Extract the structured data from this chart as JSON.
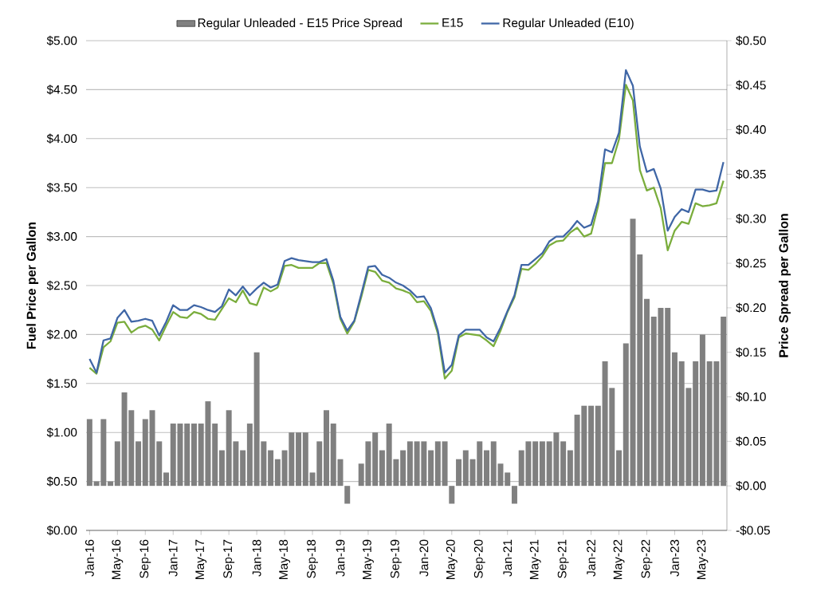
{
  "chart_data": {
    "type": "bar",
    "categories": [
      "Jan-16",
      null,
      null,
      null,
      "May-16",
      null,
      null,
      null,
      "Sep-16",
      null,
      null,
      null,
      "Jan-17",
      null,
      null,
      null,
      "May-17",
      null,
      null,
      null,
      "Sep-17",
      null,
      null,
      null,
      "Jan-18",
      null,
      null,
      null,
      "May-18",
      null,
      null,
      null,
      "Sep-18",
      null,
      null,
      null,
      "Jan-19",
      null,
      null,
      null,
      "May-19",
      null,
      null,
      null,
      "Sep-19",
      null,
      null,
      null,
      "Jan-20",
      null,
      null,
      null,
      "May-20",
      null,
      null,
      null,
      "Sep-20",
      null,
      null,
      null,
      "Jan-21",
      null,
      null,
      null,
      "May-21",
      null,
      null,
      null,
      "Sep-21",
      null,
      null,
      null,
      "Jan-22",
      null,
      null,
      null,
      "May-22",
      null,
      null,
      null,
      "Sep-22",
      null,
      null,
      null,
      "Jan-23",
      null,
      null,
      null,
      "May-23",
      null,
      null,
      null
    ],
    "series": [
      {
        "name": "Regular Unleaded - E15 Price Spread",
        "axis": "y2",
        "color": "#808080",
        "values": [
          0.075,
          0.005,
          0.075,
          0.005,
          0.05,
          0.105,
          0.085,
          0.05,
          0.075,
          0.085,
          0.05,
          0.015,
          0.07,
          0.07,
          0.07,
          0.07,
          0.07,
          0.095,
          0.07,
          0.04,
          0.085,
          0.05,
          0.04,
          0.07,
          0.15,
          0.05,
          0.04,
          0.03,
          0.04,
          0.06,
          0.06,
          0.06,
          0.015,
          0.05,
          0.085,
          0.07,
          0.03,
          -0.02,
          0,
          0.025,
          0.05,
          0.06,
          0.04,
          0.07,
          0.03,
          0.04,
          0.05,
          0.05,
          0.05,
          0.04,
          0.05,
          0.05,
          -0.02,
          0.03,
          0.04,
          0.03,
          0.05,
          0.04,
          0.05,
          0.025,
          0.015,
          -0.02,
          0.04,
          0.05,
          0.05,
          0.05,
          0.05,
          0.06,
          0.05,
          0.04,
          0.08,
          0.09,
          0.09,
          0.09,
          0.14,
          0.11,
          0.04,
          0.16,
          0.3,
          0.26,
          0.21,
          0.19,
          0.2,
          0.2,
          0.15,
          0.14,
          0.11,
          0.14,
          0.17,
          0.14,
          0.14,
          0.19
        ]
      },
      {
        "name": "E15",
        "type": "line",
        "color": "#7aad3c",
        "values": [
          1.66,
          1.6,
          1.87,
          1.93,
          2.12,
          2.13,
          2.02,
          2.07,
          2.09,
          2.05,
          1.94,
          2.09,
          2.23,
          2.18,
          2.17,
          2.23,
          2.21,
          2.16,
          2.15,
          2.26,
          2.37,
          2.33,
          2.45,
          2.32,
          2.3,
          2.48,
          2.44,
          2.48,
          2.7,
          2.71,
          2.68,
          2.68,
          2.68,
          2.73,
          2.73,
          2.52,
          2.16,
          2.01,
          2.13,
          2.38,
          2.66,
          2.64,
          2.55,
          2.53,
          2.47,
          2.45,
          2.42,
          2.33,
          2.34,
          2.24,
          2.01,
          1.55,
          1.63,
          1.97,
          2.01,
          2.0,
          1.99,
          1.94,
          1.88,
          2.04,
          2.23,
          2.38,
          2.67,
          2.66,
          2.72,
          2.8,
          2.91,
          2.95,
          2.96,
          3.04,
          3.09,
          3.0,
          3.03,
          3.31,
          3.75,
          3.75,
          3.99,
          4.55,
          4.39,
          3.68,
          3.47,
          3.5,
          3.29,
          2.86,
          3.06,
          3.15,
          3.13,
          3.34,
          3.31,
          3.32,
          3.34,
          3.57
        ]
      },
      {
        "name": "Regular Unleaded (E10)",
        "type": "line",
        "color": "#3f66a6",
        "values": [
          1.75,
          1.61,
          1.94,
          1.96,
          2.17,
          2.25,
          2.13,
          2.14,
          2.16,
          2.14,
          1.99,
          2.13,
          2.3,
          2.25,
          2.25,
          2.3,
          2.28,
          2.25,
          2.23,
          2.29,
          2.46,
          2.4,
          2.49,
          2.4,
          2.47,
          2.53,
          2.48,
          2.51,
          2.75,
          2.78,
          2.76,
          2.75,
          2.74,
          2.74,
          2.77,
          2.55,
          2.18,
          2.04,
          2.14,
          2.41,
          2.69,
          2.7,
          2.61,
          2.58,
          2.53,
          2.5,
          2.45,
          2.38,
          2.39,
          2.27,
          2.04,
          1.61,
          1.69,
          1.99,
          2.05,
          2.05,
          2.05,
          1.97,
          1.93,
          2.07,
          2.24,
          2.4,
          2.71,
          2.71,
          2.77,
          2.83,
          2.95,
          3.0,
          3.0,
          3.07,
          3.16,
          3.09,
          3.12,
          3.36,
          3.89,
          3.86,
          4.06,
          4.7,
          4.54,
          3.92,
          3.66,
          3.69,
          3.49,
          3.06,
          3.2,
          3.28,
          3.25,
          3.48,
          3.48,
          3.46,
          3.47,
          3.76
        ]
      }
    ],
    "ylabel": "Fuel Price per Gallon",
    "y2label": "Price Spread per Gallon",
    "ylim": [
      0,
      5
    ],
    "yticks": [
      {
        "value": 0,
        "label": "$0.00"
      },
      {
        "value": 0.5,
        "label": "$0.50"
      },
      {
        "value": 1,
        "label": "$1.00"
      },
      {
        "value": 1.5,
        "label": "$1.50"
      },
      {
        "value": 2,
        "label": "$2.00"
      },
      {
        "value": 2.5,
        "label": "$2.50"
      },
      {
        "value": 3,
        "label": "$3.00"
      },
      {
        "value": 3.5,
        "label": "$3.50"
      },
      {
        "value": 4,
        "label": "$4.00"
      },
      {
        "value": 4.5,
        "label": "$4.50"
      },
      {
        "value": 5,
        "label": "$5.00"
      }
    ],
    "y2lim": [
      -0.05,
      0.5
    ],
    "y2ticks": [
      {
        "value": -0.05,
        "label": "-$0.05"
      },
      {
        "value": 0,
        "label": "$0.00"
      },
      {
        "value": 0.05,
        "label": "$0.05"
      },
      {
        "value": 0.1,
        "label": "$0.10"
      },
      {
        "value": 0.15,
        "label": "$0.15"
      },
      {
        "value": 0.2,
        "label": "$0.20"
      },
      {
        "value": 0.25,
        "label": "$0.25"
      },
      {
        "value": 0.3,
        "label": "$0.30"
      },
      {
        "value": 0.35,
        "label": "$0.35"
      },
      {
        "value": 0.4,
        "label": "$0.40"
      },
      {
        "value": 0.45,
        "label": "$0.45"
      },
      {
        "value": 0.5,
        "label": "$0.50"
      }
    ],
    "grid": "y",
    "legend": "top"
  }
}
